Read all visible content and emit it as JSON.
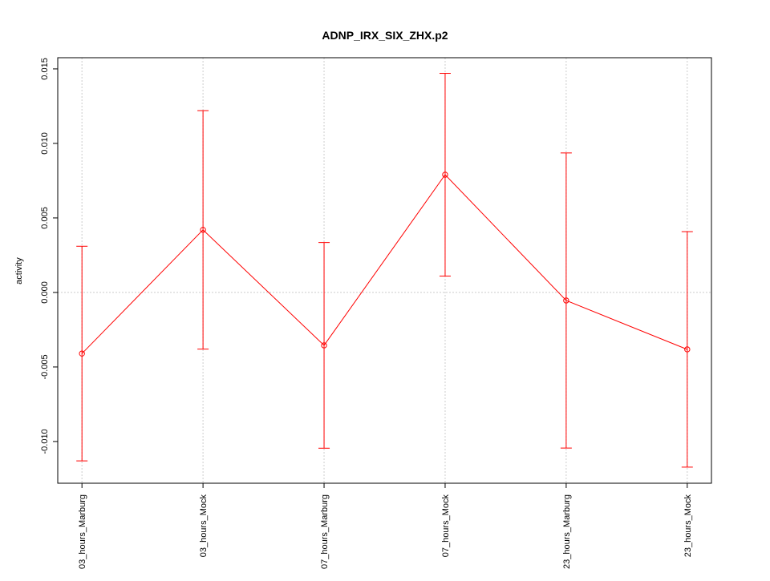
{
  "chart_data": {
    "type": "line",
    "title": "ADNP_IRX_SIX_ZHX.p2",
    "ylabel": "activity",
    "categories": [
      "03_hours_Marburg",
      "03_hours_Mock",
      "07_hours_Marburg",
      "07_hours_Mock",
      "23_hours_Marburg",
      "23_hours_Mock"
    ],
    "series": [
      {
        "name": "activity",
        "color": "#ff0000",
        "values": [
          -0.0041,
          0.0042,
          -0.00355,
          0.0079,
          -0.00054,
          -0.00382
        ],
        "errors": [
          0.0072,
          0.008,
          0.0069,
          0.0068,
          0.0099,
          0.0079
        ]
      }
    ],
    "ylim": [
      -0.0128,
      0.01575
    ],
    "yticks": [
      {
        "value": -0.01,
        "label": "-0.010"
      },
      {
        "value": -0.005,
        "label": "-0.005"
      },
      {
        "value": 0,
        "label": "0.000"
      },
      {
        "value": 0.005,
        "label": "0.005"
      },
      {
        "value": 0.01,
        "label": "0.010"
      },
      {
        "value": 0.015,
        "label": "0.015"
      }
    ],
    "reference_line": 0,
    "grid": true
  }
}
